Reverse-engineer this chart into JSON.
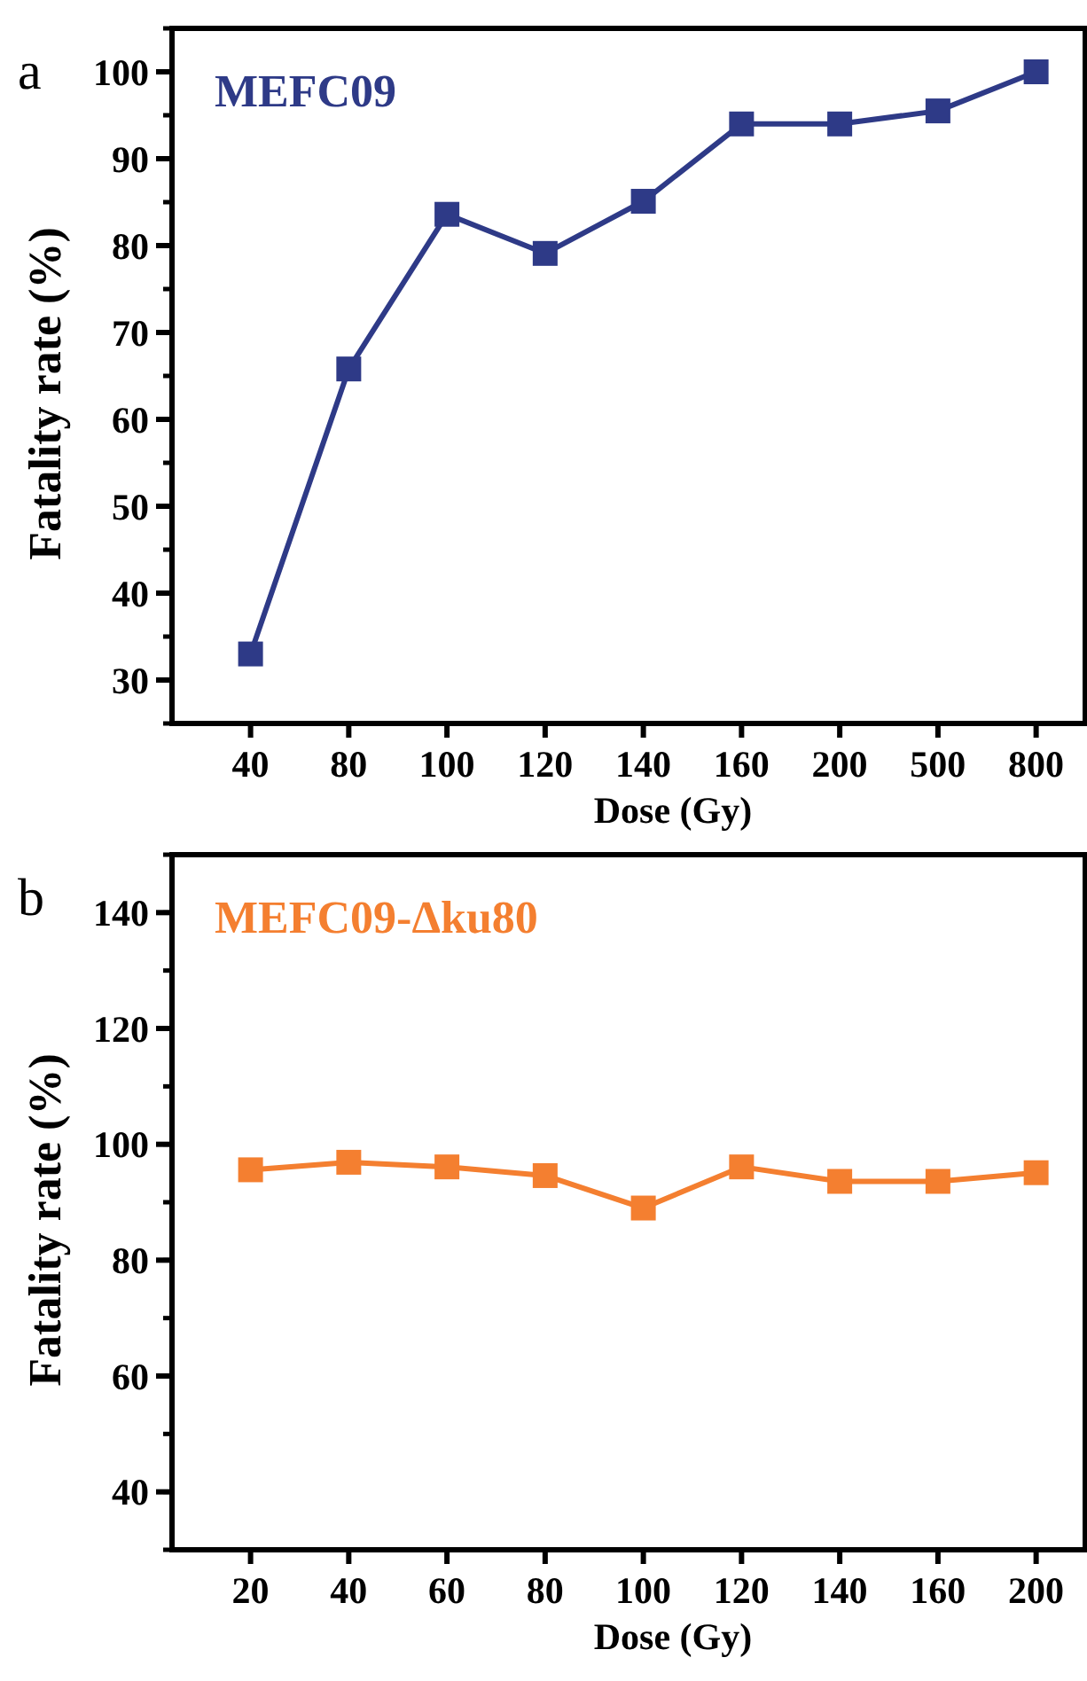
{
  "chart_data": [
    {
      "type": "line",
      "categories": [
        "40",
        "80",
        "100",
        "120",
        "140",
        "160",
        "200",
        "500",
        "800"
      ],
      "xlabel": "Dose (Gy)",
      "ylabel": "Fatality rate (%)",
      "ylim": [
        25,
        105
      ],
      "yticks": [
        30,
        40,
        50,
        60,
        70,
        80,
        90,
        100
      ],
      "marker": "square",
      "annotations": [
        "a"
      ],
      "series": [
        {
          "name": "MEFC09",
          "color": "#2e3a87",
          "values": [
            33,
            65.8,
            83.6,
            79.1,
            85.1,
            94,
            94,
            95.5,
            100
          ]
        }
      ]
    },
    {
      "type": "line",
      "categories": [
        "20",
        "40",
        "60",
        "80",
        "100",
        "120",
        "140",
        "160",
        "200"
      ],
      "xlabel": "Dose (Gy)",
      "ylabel": "Fatality rate (%)",
      "ylim": [
        30,
        150
      ],
      "yticks": [
        40,
        60,
        80,
        100,
        120,
        140
      ],
      "marker": "square",
      "annotations": [
        "b"
      ],
      "series": [
        {
          "name": "MEFC09-Δku80",
          "color": "#f47f30",
          "values": [
            95.6,
            96.9,
            96.1,
            94.6,
            89,
            96.1,
            93.6,
            93.6,
            95.1
          ]
        }
      ]
    }
  ]
}
